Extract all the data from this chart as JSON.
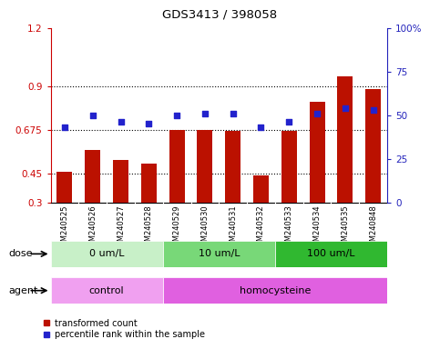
{
  "title": "GDS3413 / 398058",
  "samples": [
    "GSM240525",
    "GSM240526",
    "GSM240527",
    "GSM240528",
    "GSM240529",
    "GSM240530",
    "GSM240531",
    "GSM240532",
    "GSM240533",
    "GSM240534",
    "GSM240535",
    "GSM240848"
  ],
  "transformed_count": [
    0.46,
    0.57,
    0.52,
    0.5,
    0.675,
    0.675,
    0.67,
    0.44,
    0.67,
    0.82,
    0.95,
    0.885
  ],
  "percentile_rank_pct": [
    43,
    50,
    46,
    45,
    50,
    51,
    51,
    43,
    46,
    51,
    54,
    53
  ],
  "ylim_left": [
    0.3,
    1.2
  ],
  "ylim_right": [
    0,
    100
  ],
  "yticks_left": [
    0.3,
    0.45,
    0.675,
    0.9,
    1.2
  ],
  "ytick_labels_left": [
    "0.3",
    "0.45",
    "0.675",
    "0.9",
    "1.2"
  ],
  "yticks_right": [
    0,
    25,
    50,
    75,
    100
  ],
  "ytick_labels_right": [
    "0",
    "25",
    "50",
    "75",
    "100%"
  ],
  "hlines": [
    0.45,
    0.675,
    0.9
  ],
  "dose_groups": [
    {
      "label": "0 um/L",
      "start": 0,
      "end": 4,
      "color": "#C8F0C8"
    },
    {
      "label": "10 um/L",
      "start": 4,
      "end": 8,
      "color": "#78D878"
    },
    {
      "label": "100 um/L",
      "start": 8,
      "end": 12,
      "color": "#30B830"
    }
  ],
  "agent_groups": [
    {
      "label": "control",
      "start": 0,
      "end": 4,
      "color": "#F0A0F0"
    },
    {
      "label": "homocysteine",
      "start": 4,
      "end": 12,
      "color": "#E060E0"
    }
  ],
  "bar_color": "#BB1100",
  "dot_color": "#2222CC",
  "axis_color_left": "#CC0000",
  "axis_color_right": "#2222BB",
  "legend_items": [
    "transformed count",
    "percentile rank within the sample"
  ],
  "dose_label": "dose",
  "agent_label": "agent",
  "bg_color": "#FFFFFF",
  "plot_bg_color": "#FFFFFF",
  "tick_bg_color": "#D0D0D0"
}
